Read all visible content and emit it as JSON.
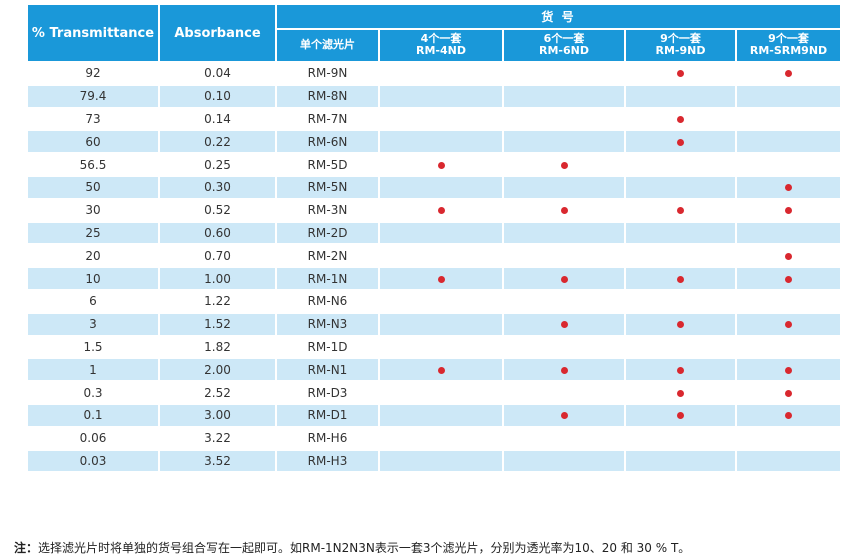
{
  "header": {
    "transmittance": "% Transmittance",
    "absorbance": "Absorbance",
    "group_label": "货 号",
    "single_filter": "单个滤光片",
    "sets": [
      {
        "line1": "4个一套",
        "line2": "RM-4ND"
      },
      {
        "line1": "6个一套",
        "line2": "RM-6ND"
      },
      {
        "line1": "9个一套",
        "line2": "RM-9ND"
      },
      {
        "line1": "9个一套",
        "line2": "RM-SRM9ND"
      }
    ]
  },
  "rows": [
    {
      "transmittance": "92",
      "absorbance": "0.04",
      "code": "RM-9N",
      "in_sets": [
        false,
        false,
        true,
        true
      ]
    },
    {
      "transmittance": "79.4",
      "absorbance": "0.10",
      "code": "RM-8N",
      "in_sets": [
        false,
        false,
        false,
        false
      ]
    },
    {
      "transmittance": "73",
      "absorbance": "0.14",
      "code": "RM-7N",
      "in_sets": [
        false,
        false,
        true,
        false
      ]
    },
    {
      "transmittance": "60",
      "absorbance": "0.22",
      "code": "RM-6N",
      "in_sets": [
        false,
        false,
        true,
        false
      ]
    },
    {
      "transmittance": "56.5",
      "absorbance": "0.25",
      "code": "RM-5D",
      "in_sets": [
        true,
        true,
        false,
        false
      ]
    },
    {
      "transmittance": "50",
      "absorbance": "0.30",
      "code": "RM-5N",
      "in_sets": [
        false,
        false,
        false,
        true
      ]
    },
    {
      "transmittance": "30",
      "absorbance": "0.52",
      "code": "RM-3N",
      "in_sets": [
        true,
        true,
        true,
        true
      ]
    },
    {
      "transmittance": "25",
      "absorbance": "0.60",
      "code": "RM-2D",
      "in_sets": [
        false,
        false,
        false,
        false
      ]
    },
    {
      "transmittance": "20",
      "absorbance": "0.70",
      "code": "RM-2N",
      "in_sets": [
        false,
        false,
        false,
        true
      ]
    },
    {
      "transmittance": "10",
      "absorbance": "1.00",
      "code": "RM-1N",
      "in_sets": [
        true,
        true,
        true,
        true
      ]
    },
    {
      "transmittance": "6",
      "absorbance": "1.22",
      "code": "RM-N6",
      "in_sets": [
        false,
        false,
        false,
        false
      ]
    },
    {
      "transmittance": "3",
      "absorbance": "1.52",
      "code": "RM-N3",
      "in_sets": [
        false,
        true,
        true,
        true
      ]
    },
    {
      "transmittance": "1.5",
      "absorbance": "1.82",
      "code": "RM-1D",
      "in_sets": [
        false,
        false,
        false,
        false
      ]
    },
    {
      "transmittance": "1",
      "absorbance": "2.00",
      "code": "RM-N1",
      "in_sets": [
        true,
        true,
        true,
        true
      ]
    },
    {
      "transmittance": "0.3",
      "absorbance": "2.52",
      "code": "RM-D3",
      "in_sets": [
        false,
        false,
        true,
        true
      ]
    },
    {
      "transmittance": "0.1",
      "absorbance": "3.00",
      "code": "RM-D1",
      "in_sets": [
        false,
        true,
        true,
        true
      ]
    },
    {
      "transmittance": "0.06",
      "absorbance": "3.22",
      "code": "RM-H6",
      "in_sets": [
        false,
        false,
        false,
        false
      ]
    },
    {
      "transmittance": "0.03",
      "absorbance": "3.52",
      "code": "RM-H3",
      "in_sets": [
        false,
        false,
        false,
        false
      ]
    }
  ],
  "note": {
    "label": "注：",
    "text": "选择滤光片时将单独的货号组合写在一起即可。如RM-1N2N3N表示一套3个滤光片，分别为透光率为10、20 和 30 % T。"
  },
  "colors": {
    "header_bg": "#1a98d9",
    "stripe_bg": "#cde8f7",
    "code_text": "#d9282f",
    "dot": "#d9282f"
  }
}
